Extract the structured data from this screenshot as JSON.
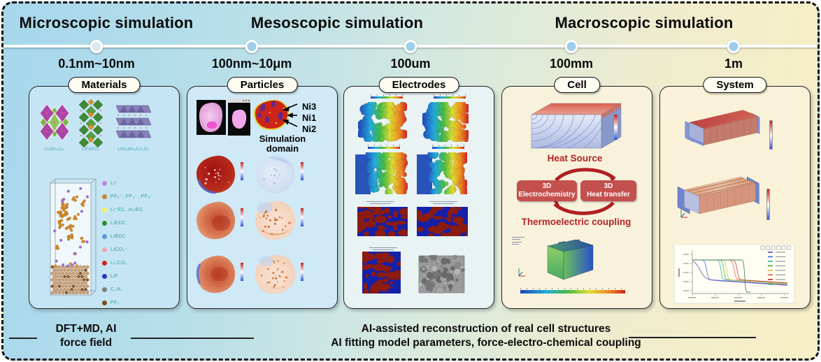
{
  "header": {
    "titles": [
      "Microscopic simulation",
      "Mesoscopic simulation",
      "Macroscopic simulation"
    ],
    "scales": [
      "0.1nm~10nm",
      "100nm~10μm",
      "100um",
      "100mm",
      "1m"
    ]
  },
  "materials": {
    "label": "Materials",
    "crystal_labels": [
      "LiₓMn₂O₄",
      "LiFePO₄",
      "LiNiₓMnᵧCo₂O₂"
    ],
    "legend": [
      {
        "color": "#bf85e0",
        "label": "Li⁺"
      },
      {
        "color": "#c8872e",
        "label": "PF₅⁻, PF₄⁻, PF₆⁻"
      },
      {
        "color": "#f6f25c",
        "label": "Li⁺EC, oLiEC"
      },
      {
        "color": "#2e8b2e",
        "label": "LiEDC"
      },
      {
        "color": "#5b9bd5",
        "label": "LiBDC"
      },
      {
        "color": "#f0a8ae",
        "label": "LiCO₃⁻"
      },
      {
        "color": "#d42424",
        "label": "Li₂CO₃"
      },
      {
        "color": "#2a35c0",
        "label": "LiF"
      },
      {
        "color": "#7d7d7d",
        "label": "C₂H₄"
      },
      {
        "color": "#7a4c1e",
        "label": "PF₃"
      }
    ]
  },
  "particles": {
    "label": "Particles",
    "ni_labels": [
      "Ni3",
      "Ni1",
      "Ni2"
    ],
    "domain_caption_line1": "Simulation",
    "domain_caption_line2": "domain"
  },
  "electrodes": {
    "label": "Electrodes"
  },
  "cell": {
    "label": "Cell",
    "heat_source": "Heat Source",
    "box_left_line1": "3D",
    "box_left_line2": "Electrochemistry",
    "box_right_line1": "3D",
    "box_right_line2": "Heat transfer",
    "coupling": "Thermoelectric coupling"
  },
  "system": {
    "label": "System"
  },
  "footer": {
    "left_line1": "DFT+MD, AI",
    "left_line2": "force field",
    "center_line1": "AI-assisted reconstruction of real cell structures",
    "center_line2": "AI fitting model parameters, force-electro-chemical coupling"
  },
  "colors": {
    "accent_red": "#b22525",
    "coupling_box_red": "#c4504e",
    "timeline_node_blue": "#9fcde9",
    "panel_blue_bg": "#c6e5f4",
    "panel_cream_bg": "#f8f2dc"
  },
  "system_chart": {
    "type": "line",
    "description": "Discharge voltage curves of the cells in the module; axis tick and legend labels not legible in source",
    "legend_position": "right",
    "series": [
      {
        "color": "#7a4fb0",
        "drop": 0.08,
        "k": 7,
        "plunge": false
      },
      {
        "color": "#4a6fd0",
        "drop": 0.15,
        "k": 22,
        "plunge": false
      },
      {
        "color": "#3fb8a8",
        "drop": 0.3,
        "k": 26,
        "plunge": false
      },
      {
        "color": "#58aa50",
        "drop": 0.33,
        "k": 26,
        "plunge": false
      },
      {
        "color": "#d8c840",
        "drop": 0.36,
        "k": 26,
        "plunge": false
      },
      {
        "color": "#d86a50",
        "drop": 0.44,
        "k": 22,
        "plunge": false
      },
      {
        "color": "#c84040",
        "drop": 0.47,
        "k": 22,
        "plunge": false
      },
      {
        "color": "#2e7d4f",
        "drop": 0.55,
        "k": 40,
        "plunge": true
      }
    ]
  }
}
